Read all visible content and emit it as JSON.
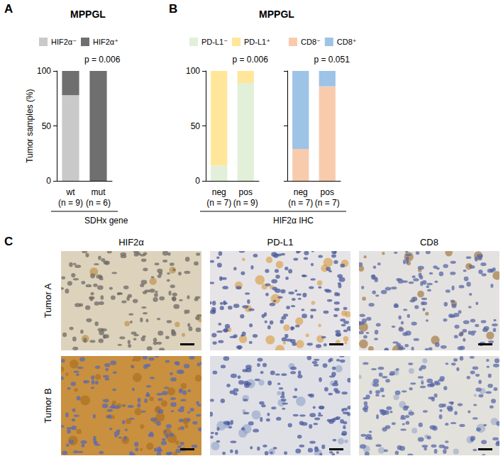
{
  "chart_data": [
    {
      "type": "bar",
      "panel_label": "A",
      "title": "MPPGL",
      "categories": [
        "wt",
        "mut"
      ],
      "category_sublabels": [
        "(n = 9)",
        "(n = 6)"
      ],
      "group_label": "SDHx gene",
      "ylabel": "Tumor samples (%)",
      "annotation": "p = 0.006",
      "series": [
        {
          "name": "HIF2α⁻",
          "color": "#c9c9c9",
          "values": [
            78,
            0
          ]
        },
        {
          "name": "HIF2α⁺",
          "color": "#6f6f6f",
          "values": [
            22,
            100
          ]
        }
      ],
      "stacked": true,
      "ylim": [
        0,
        100
      ],
      "yticks": [
        0,
        50,
        100
      ],
      "grid": false,
      "legend": "top"
    },
    {
      "type": "bar",
      "panel_label": "B",
      "title": "MPPGL",
      "categories": [
        "neg",
        "pos"
      ],
      "category_sublabels": [
        "(n = 7)",
        "(n = 9)"
      ],
      "group_label": "HIF2α IHC",
      "annotation": "p = 0.006",
      "series": [
        {
          "name": "PD-L1⁻",
          "color": "#e2f0d9",
          "values": [
            14,
            89
          ]
        },
        {
          "name": "PD-L1⁺",
          "color": "#ffe699",
          "values": [
            86,
            11
          ]
        }
      ],
      "stacked": true,
      "ylim": [
        0,
        100
      ],
      "yticks": [
        0,
        50,
        100
      ],
      "grid": false,
      "legend": "top"
    },
    {
      "type": "bar",
      "categories": [
        "neg",
        "pos"
      ],
      "category_sublabels": [
        "(n = 7)",
        "(n = 7)"
      ],
      "annotation": "p = 0.051",
      "series": [
        {
          "name": "CD8⁻",
          "color": "#f8cbad",
          "values": [
            29,
            86
          ]
        },
        {
          "name": "CD8⁺",
          "color": "#9dc3e6",
          "values": [
            71,
            14
          ]
        }
      ],
      "stacked": true,
      "ylim": [
        0,
        100
      ],
      "yticks": [
        0,
        50,
        100
      ],
      "grid": false,
      "legend": "top",
      "tick_labels": "x"
    }
  ],
  "panel_c": {
    "label": "C",
    "columns": [
      "HIF2α",
      "PD-L1",
      "CD8"
    ],
    "rows": [
      "Tumor A",
      "Tumor B"
    ]
  }
}
